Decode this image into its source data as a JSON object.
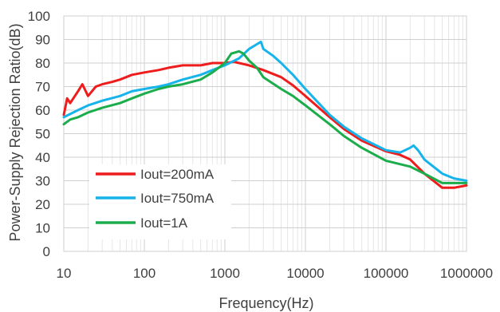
{
  "chart_data": {
    "type": "line",
    "title": "",
    "xlabel": "Frequency(Hz)",
    "ylabel": "Power-Supply Rejection Ratio(dB)",
    "x_scale": "log",
    "xlim": [
      10,
      1000000
    ],
    "ylim": [
      0,
      100
    ],
    "x_ticks": [
      10,
      100,
      1000,
      10000,
      100000,
      1000000
    ],
    "x_tick_labels": [
      "10",
      "100",
      "1000",
      "10000",
      "100000",
      "1000000"
    ],
    "y_ticks": [
      0,
      10,
      20,
      30,
      40,
      50,
      60,
      70,
      80,
      90,
      100
    ],
    "y_tick_labels": [
      "0",
      "10",
      "20",
      "30",
      "40",
      "50",
      "60",
      "70",
      "80",
      "90",
      "100"
    ],
    "grid": {
      "major": true,
      "minor_x": true
    },
    "legend_position": "lower-left",
    "series": [
      {
        "name": "Iout=200mA",
        "color": "#ee1c1c",
        "x": [
          10,
          11,
          12,
          15,
          17,
          20,
          25,
          30,
          40,
          50,
          70,
          100,
          150,
          200,
          300,
          500,
          700,
          1000,
          1300,
          2000,
          3000,
          5000,
          7000,
          10000,
          20000,
          30000,
          50000,
          100000,
          150000,
          200000,
          300000,
          500000,
          700000,
          1000000
        ],
        "y": [
          58,
          65,
          63,
          68,
          71,
          66,
          70,
          71,
          72,
          73,
          75,
          76,
          77,
          78,
          79,
          79,
          80,
          80,
          80.5,
          79,
          77,
          74,
          70.5,
          66,
          57,
          52,
          47,
          42.5,
          41,
          39,
          33,
          27,
          27,
          28
        ]
      },
      {
        "name": "Iout=750mA",
        "color": "#16b4ea",
        "x": [
          10,
          15,
          20,
          30,
          50,
          70,
          100,
          150,
          200,
          300,
          500,
          700,
          1000,
          1500,
          2000,
          2500,
          2800,
          3000,
          4000,
          5000,
          7000,
          10000,
          20000,
          30000,
          50000,
          100000,
          150000,
          200000,
          220000,
          250000,
          300000,
          500000,
          700000,
          1000000
        ],
        "y": [
          57,
          60,
          62,
          64,
          66,
          68,
          69,
          70,
          71,
          73,
          75,
          77,
          79,
          82,
          86,
          88,
          89,
          86,
          83,
          80,
          75,
          69,
          58,
          53,
          48,
          43,
          42,
          44,
          45,
          43,
          39,
          33,
          31,
          30
        ]
      },
      {
        "name": "Iout=1A",
        "color": "#1bad4b",
        "x": [
          10,
          12,
          15,
          20,
          30,
          50,
          70,
          100,
          150,
          200,
          300,
          500,
          700,
          1000,
          1200,
          1500,
          1700,
          2000,
          2500,
          3000,
          5000,
          7000,
          10000,
          20000,
          30000,
          50000,
          100000,
          200000,
          300000,
          500000,
          1000000
        ],
        "y": [
          54,
          56,
          57,
          59,
          61,
          63,
          65,
          67,
          69,
          70,
          71,
          73,
          76,
          80,
          84,
          85,
          84,
          81,
          78,
          74,
          69,
          66,
          62,
          54,
          49,
          44,
          38.5,
          36,
          33,
          29,
          29
        ]
      }
    ]
  }
}
